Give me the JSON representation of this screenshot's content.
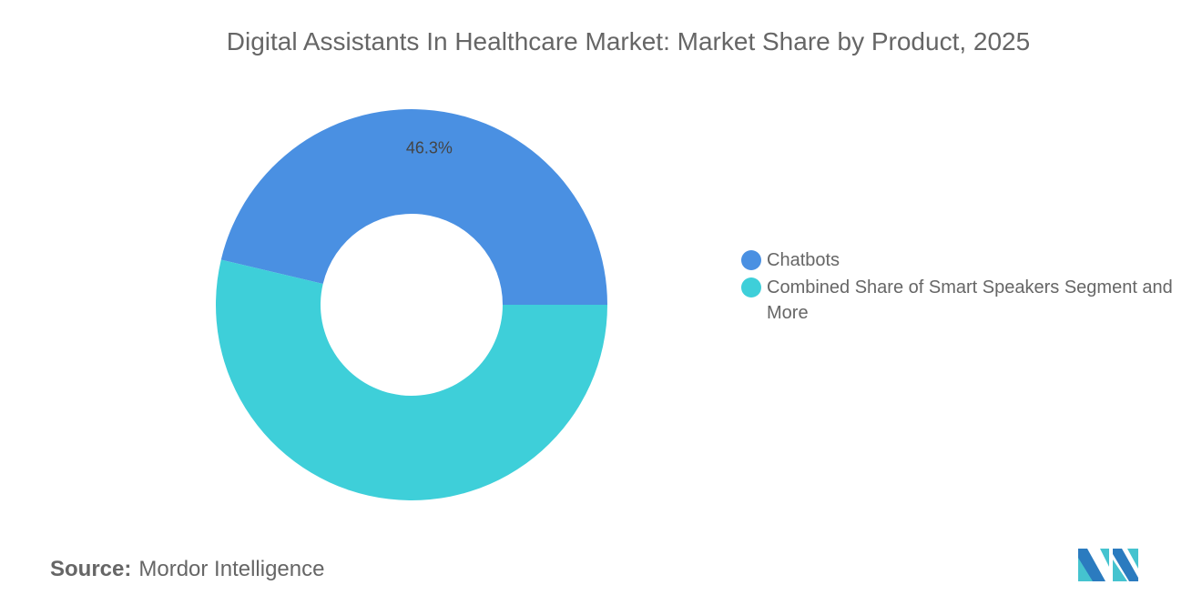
{
  "title": "Digital Assistants In Healthcare Market: Market Share by Product, 2025",
  "chart_data": {
    "type": "pie",
    "donut": true,
    "title": "Digital Assistants In Healthcare Market: Market Share by Product, 2025",
    "categories": [
      "Chatbots",
      "Combined Share of Smart Speakers Segment and More"
    ],
    "values": [
      46.3,
      53.7
    ],
    "data_labels": [
      "46.3%",
      ""
    ],
    "colors": [
      "#4a90e2",
      "#3ecfd9"
    ],
    "legend_position": "right"
  },
  "source": {
    "label": "Source:",
    "value": "Mordor Intelligence"
  },
  "logo": {
    "colors": [
      "#2b7bbf",
      "#45c3cf"
    ]
  }
}
